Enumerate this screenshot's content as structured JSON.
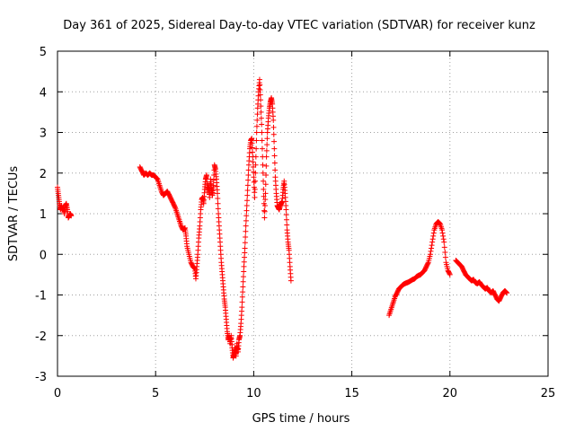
{
  "chart_data": {
    "type": "scatter",
    "title": "Day 361 of 2025, Sidereal Day-to-day VTEC variation (SDTVAR) for receiver kunz",
    "xlabel": "GPS time / hours",
    "ylabel": "SDTVAR / TECUs",
    "xlim": [
      0,
      25
    ],
    "ylim": [
      -3,
      5
    ],
    "xticks": [
      0,
      5,
      10,
      15,
      20,
      25
    ],
    "yticks": [
      -3,
      -2,
      -1,
      0,
      1,
      2,
      3,
      4,
      5
    ],
    "grid": true,
    "marker": "+",
    "color": "#ff0000",
    "series": [
      {
        "name": "SDTVAR",
        "segments": [
          [
            [
              0.0,
              1.65
            ],
            [
              0.05,
              1.45
            ],
            [
              0.1,
              1.25
            ],
            [
              0.15,
              1.1
            ],
            [
              0.2,
              1.2
            ],
            [
              0.25,
              1.1
            ],
            [
              0.3,
              1.15
            ],
            [
              0.35,
              1.0
            ],
            [
              0.4,
              1.2
            ],
            [
              0.45,
              1.25
            ],
            [
              0.5,
              1.1
            ],
            [
              0.55,
              0.9
            ],
            [
              0.6,
              0.95
            ],
            [
              0.65,
              1.0
            ],
            [
              0.7,
              0.95
            ]
          ],
          [
            [
              4.2,
              2.15
            ],
            [
              4.3,
              2.05
            ],
            [
              4.4,
              1.95
            ],
            [
              4.5,
              2.0
            ],
            [
              4.6,
              1.95
            ],
            [
              4.7,
              2.0
            ],
            [
              4.8,
              1.95
            ],
            [
              4.9,
              1.95
            ],
            [
              5.0,
              1.9
            ],
            [
              5.1,
              1.85
            ],
            [
              5.2,
              1.7
            ],
            [
              5.3,
              1.55
            ],
            [
              5.4,
              1.45
            ],
            [
              5.5,
              1.5
            ],
            [
              5.6,
              1.55
            ],
            [
              5.7,
              1.45
            ],
            [
              5.8,
              1.35
            ],
            [
              5.9,
              1.25
            ],
            [
              6.0,
              1.15
            ],
            [
              6.1,
              1.0
            ],
            [
              6.2,
              0.85
            ],
            [
              6.3,
              0.7
            ],
            [
              6.4,
              0.6
            ],
            [
              6.5,
              0.65
            ],
            [
              6.55,
              0.45
            ],
            [
              6.6,
              0.2
            ],
            [
              6.7,
              0.0
            ],
            [
              6.8,
              -0.2
            ],
            [
              6.9,
              -0.3
            ],
            [
              7.0,
              -0.35
            ],
            [
              7.05,
              -0.6
            ],
            [
              7.1,
              -0.3
            ],
            [
              7.15,
              0.0
            ],
            [
              7.2,
              0.4
            ],
            [
              7.25,
              0.7
            ],
            [
              7.3,
              1.1
            ],
            [
              7.35,
              1.35
            ],
            [
              7.4,
              1.4
            ],
            [
              7.45,
              1.25
            ],
            [
              7.5,
              1.6
            ],
            [
              7.55,
              1.85
            ],
            [
              7.6,
              1.95
            ],
            [
              7.65,
              1.55
            ],
            [
              7.7,
              1.7
            ],
            [
              7.75,
              1.4
            ],
            [
              7.8,
              1.85
            ],
            [
              7.85,
              1.6
            ],
            [
              7.9,
              1.45
            ],
            [
              7.95,
              1.7
            ],
            [
              8.0,
              2.2
            ],
            [
              8.05,
              2.1
            ],
            [
              8.1,
              1.85
            ],
            [
              8.15,
              1.5
            ],
            [
              8.2,
              1.0
            ],
            [
              8.25,
              0.6
            ],
            [
              8.3,
              0.2
            ],
            [
              8.35,
              -0.2
            ],
            [
              8.4,
              -0.5
            ],
            [
              8.45,
              -0.8
            ],
            [
              8.5,
              -1.1
            ],
            [
              8.55,
              -1.3
            ],
            [
              8.6,
              -1.6
            ],
            [
              8.65,
              -1.9
            ],
            [
              8.7,
              -2.1
            ],
            [
              8.75,
              -2.0
            ],
            [
              8.8,
              -2.2
            ],
            [
              8.85,
              -2.0
            ],
            [
              8.9,
              -2.3
            ],
            [
              8.95,
              -2.55
            ],
            [
              9.0,
              -2.45
            ],
            [
              9.05,
              -2.3
            ],
            [
              9.1,
              -2.5
            ],
            [
              9.15,
              -2.2
            ],
            [
              9.2,
              -2.4
            ],
            [
              9.25,
              -2.1
            ],
            [
              9.3,
              -2.0
            ],
            [
              9.35,
              -1.7
            ],
            [
              9.4,
              -1.3
            ],
            [
              9.45,
              -0.8
            ],
            [
              9.5,
              -0.3
            ],
            [
              9.55,
              0.15
            ],
            [
              9.6,
              0.7
            ],
            [
              9.65,
              1.2
            ],
            [
              9.7,
              1.7
            ],
            [
              9.75,
              2.2
            ],
            [
              9.8,
              2.6
            ],
            [
              9.85,
              2.8
            ],
            [
              9.9,
              2.85
            ],
            [
              9.95,
              2.4
            ],
            [
              10.0,
              1.9
            ],
            [
              10.05,
              1.4
            ],
            [
              10.1,
              2.2
            ],
            [
              10.15,
              3.0
            ],
            [
              10.2,
              3.6
            ],
            [
              10.25,
              4.0
            ],
            [
              10.3,
              4.3
            ],
            [
              10.35,
              3.8
            ],
            [
              10.4,
              3.2
            ],
            [
              10.45,
              2.4
            ],
            [
              10.5,
              1.6
            ],
            [
              10.55,
              0.9
            ],
            [
              10.6,
              1.5
            ],
            [
              10.65,
              2.4
            ],
            [
              10.7,
              3.0
            ],
            [
              10.75,
              3.35
            ],
            [
              10.8,
              3.6
            ],
            [
              10.85,
              3.75
            ],
            [
              10.9,
              3.85
            ],
            [
              10.95,
              3.7
            ],
            [
              11.0,
              3.3
            ],
            [
              11.05,
              2.6
            ],
            [
              11.1,
              1.9
            ],
            [
              11.15,
              1.5
            ],
            [
              11.2,
              1.2
            ],
            [
              11.25,
              1.15
            ],
            [
              11.3,
              1.1
            ],
            [
              11.35,
              1.2
            ],
            [
              11.4,
              1.25
            ],
            [
              11.45,
              1.3
            ],
            [
              11.5,
              1.6
            ],
            [
              11.55,
              1.8
            ],
            [
              11.6,
              1.5
            ],
            [
              11.65,
              1.1
            ],
            [
              11.7,
              0.6
            ],
            [
              11.75,
              0.3
            ],
            [
              11.8,
              0.1
            ],
            [
              11.85,
              -0.3
            ],
            [
              11.9,
              -0.65
            ]
          ],
          [
            [
              16.9,
              -1.5
            ],
            [
              17.0,
              -1.35
            ],
            [
              17.1,
              -1.2
            ],
            [
              17.2,
              -1.05
            ],
            [
              17.3,
              -0.95
            ],
            [
              17.4,
              -0.85
            ],
            [
              17.5,
              -0.8
            ],
            [
              17.6,
              -0.75
            ],
            [
              17.7,
              -0.72
            ],
            [
              17.8,
              -0.7
            ],
            [
              17.9,
              -0.68
            ],
            [
              18.0,
              -0.65
            ],
            [
              18.1,
              -0.62
            ],
            [
              18.2,
              -0.6
            ],
            [
              18.3,
              -0.55
            ],
            [
              18.4,
              -0.52
            ],
            [
              18.5,
              -0.5
            ],
            [
              18.6,
              -0.45
            ],
            [
              18.7,
              -0.4
            ],
            [
              18.8,
              -0.3
            ],
            [
              18.9,
              -0.2
            ],
            [
              19.0,
              0.0
            ],
            [
              19.1,
              0.3
            ],
            [
              19.2,
              0.6
            ],
            [
              19.3,
              0.75
            ],
            [
              19.4,
              0.8
            ],
            [
              19.5,
              0.75
            ],
            [
              19.6,
              0.6
            ],
            [
              19.7,
              0.3
            ],
            [
              19.8,
              -0.2
            ],
            [
              19.9,
              -0.4
            ],
            [
              20.0,
              -0.5
            ]
          ],
          [
            [
              20.3,
              -0.15
            ],
            [
              20.4,
              -0.2
            ],
            [
              20.5,
              -0.25
            ],
            [
              20.6,
              -0.3
            ],
            [
              20.7,
              -0.4
            ],
            [
              20.8,
              -0.5
            ],
            [
              20.9,
              -0.55
            ],
            [
              21.0,
              -0.6
            ],
            [
              21.1,
              -0.65
            ],
            [
              21.2,
              -0.62
            ],
            [
              21.3,
              -0.7
            ],
            [
              21.4,
              -0.72
            ],
            [
              21.5,
              -0.68
            ],
            [
              21.6,
              -0.75
            ],
            [
              21.7,
              -0.8
            ],
            [
              21.8,
              -0.85
            ],
            [
              21.9,
              -0.82
            ],
            [
              22.0,
              -0.9
            ],
            [
              22.1,
              -0.95
            ],
            [
              22.2,
              -0.9
            ],
            [
              22.3,
              -1.0
            ],
            [
              22.4,
              -1.1
            ],
            [
              22.5,
              -1.15
            ],
            [
              22.6,
              -1.05
            ],
            [
              22.7,
              -0.95
            ],
            [
              22.8,
              -0.9
            ],
            [
              22.9,
              -0.95
            ]
          ]
        ]
      }
    ]
  }
}
